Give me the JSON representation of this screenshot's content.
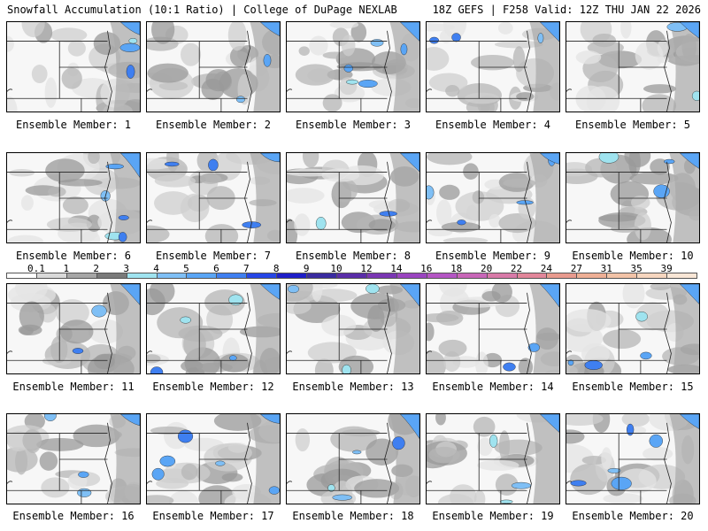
{
  "header": {
    "title": "Snowfall Accumulation (10:1 Ratio) | College of DuPage NEXLAB",
    "run_info": "18Z GEFS | F258 Valid: 12Z THU JAN 22 2026"
  },
  "colorbar": {
    "ticks": [
      "0.1",
      "1",
      "2",
      "3",
      "4",
      "5",
      "6",
      "7",
      "8",
      "9",
      "10",
      "12",
      "14",
      "16",
      "18",
      "20",
      "22",
      "24",
      "27",
      "31",
      "35",
      "39"
    ],
    "colors": [
      "#ffffff",
      "#d9d9d9",
      "#a6a6a6",
      "#7a7a7a",
      "#9fe3ef",
      "#7fbff5",
      "#5aa5f5",
      "#3f7ff0",
      "#2646e6",
      "#1e1ec8",
      "#3a2ba0",
      "#5a2da8",
      "#7a36b3",
      "#9a44c0",
      "#b455c4",
      "#c866b8",
      "#d87aa8",
      "#e2869a",
      "#e89a8e",
      "#eeaf95",
      "#f2c3a7",
      "#f6d6bf",
      "#f9e6d6"
    ]
  },
  "members": [
    {
      "label": "Ensemble Member: 1"
    },
    {
      "label": "Ensemble Member: 2"
    },
    {
      "label": "Ensemble Member: 3"
    },
    {
      "label": "Ensemble Member: 4"
    },
    {
      "label": "Ensemble Member: 5"
    },
    {
      "label": "Ensemble Member: 6"
    },
    {
      "label": "Ensemble Member: 7"
    },
    {
      "label": "Ensemble Member: 8"
    },
    {
      "label": "Ensemble Member: 9"
    },
    {
      "label": "Ensemble Member: 10"
    },
    {
      "label": "Ensemble Member: 11"
    },
    {
      "label": "Ensemble Member: 12"
    },
    {
      "label": "Ensemble Member: 13"
    },
    {
      "label": "Ensemble Member: 14"
    },
    {
      "label": "Ensemble Member: 15"
    },
    {
      "label": "Ensemble Member: 16"
    },
    {
      "label": "Ensemble Member: 17"
    },
    {
      "label": "Ensemble Member: 18"
    },
    {
      "label": "Ensemble Member: 19"
    },
    {
      "label": "Ensemble Member: 20"
    }
  ]
}
